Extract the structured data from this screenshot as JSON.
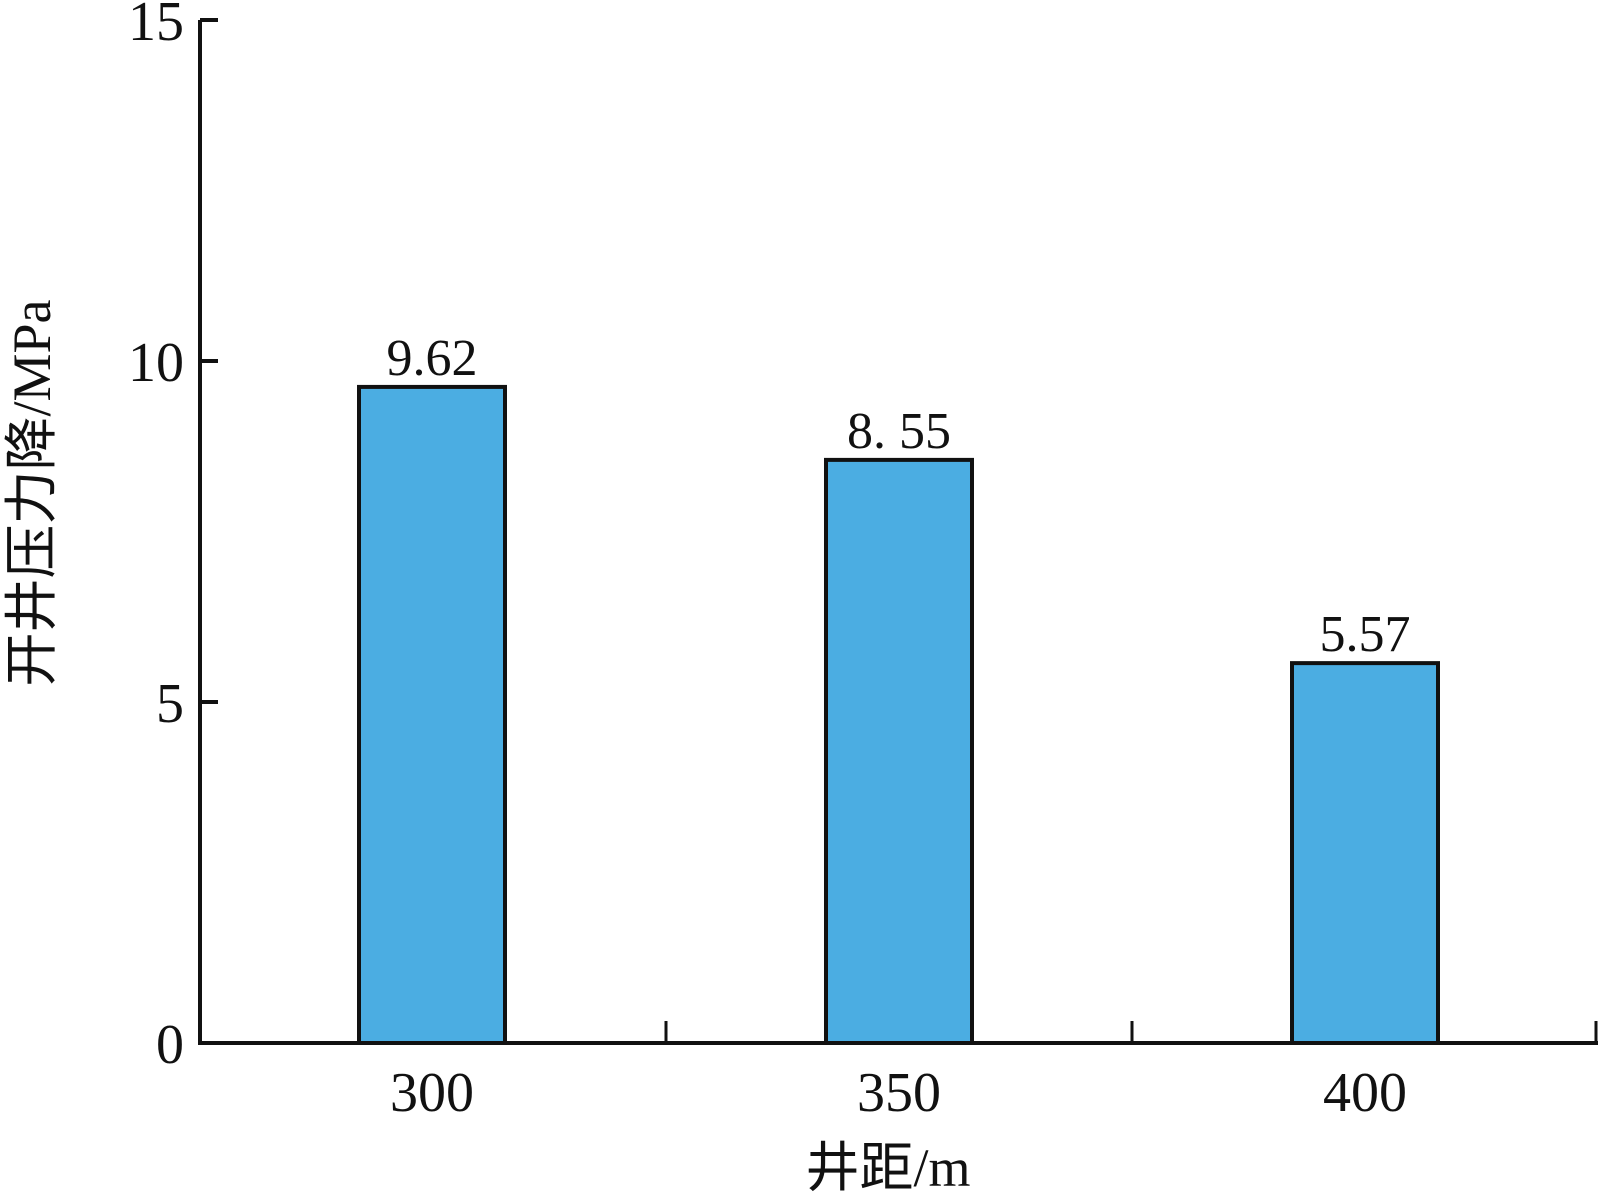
{
  "chart_data": {
    "type": "bar",
    "categories": [
      "300",
      "350",
      "400"
    ],
    "values": [
      9.62,
      8.55,
      5.57
    ],
    "value_labels": [
      "9.62",
      "8. 55",
      "5.57"
    ],
    "xlabel": "井距/m",
    "ylabel": "开井压力降/MPa",
    "ylim": [
      0,
      15
    ],
    "yticks": [
      0,
      5,
      10,
      15
    ],
    "ytick_labels": [
      "0",
      "5",
      "10",
      "15"
    ],
    "grid": false,
    "legend": "none",
    "colors": {
      "bar_fill": "#4badE2",
      "bar_stroke": "#111111",
      "axis": "#111111"
    }
  }
}
